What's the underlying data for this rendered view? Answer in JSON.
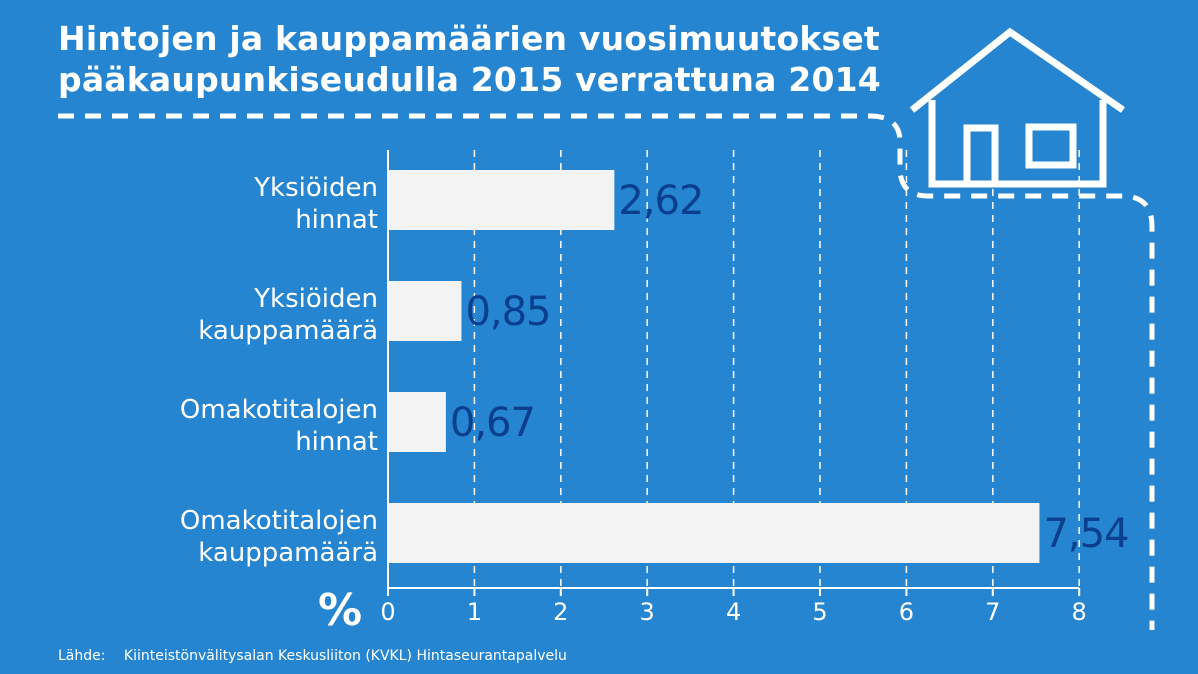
{
  "title_lines": [
    "Hintojen ja kauppamäärien vuosimuutokset",
    "pääkaupunkiseudulla 2015 verrattuna 2014"
  ],
  "source": {
    "label": "Lähde:",
    "text": "Kiinteistönvälitysalan Keskusliiton (KVKL) Hintaseurantapalvelu"
  },
  "colors": {
    "background": "#2685d0",
    "bar": "#f3f3f3",
    "value_label": "#0a3f8f",
    "text": "#ffffff"
  },
  "decoration": {
    "icon": "house-icon"
  },
  "chart_data": {
    "type": "bar",
    "orientation": "horizontal",
    "categories": [
      [
        "Yksiöiden",
        "hinnat"
      ],
      [
        "Yksiöiden",
        "kauppamäärä"
      ],
      [
        "Omakotitalojen",
        "hinnat"
      ],
      [
        "Omakotitalojen",
        "kauppamäärä"
      ]
    ],
    "values": [
      2.62,
      0.85,
      0.67,
      7.54
    ],
    "value_labels": [
      "2,62",
      "0,85",
      "0,67",
      "7,54"
    ],
    "xlabel": "%",
    "xlim": [
      0,
      8
    ],
    "xticks": [
      "0",
      "1",
      "2",
      "3",
      "4",
      "5",
      "6",
      "7",
      "8"
    ],
    "grid": "vertical-dashed"
  }
}
